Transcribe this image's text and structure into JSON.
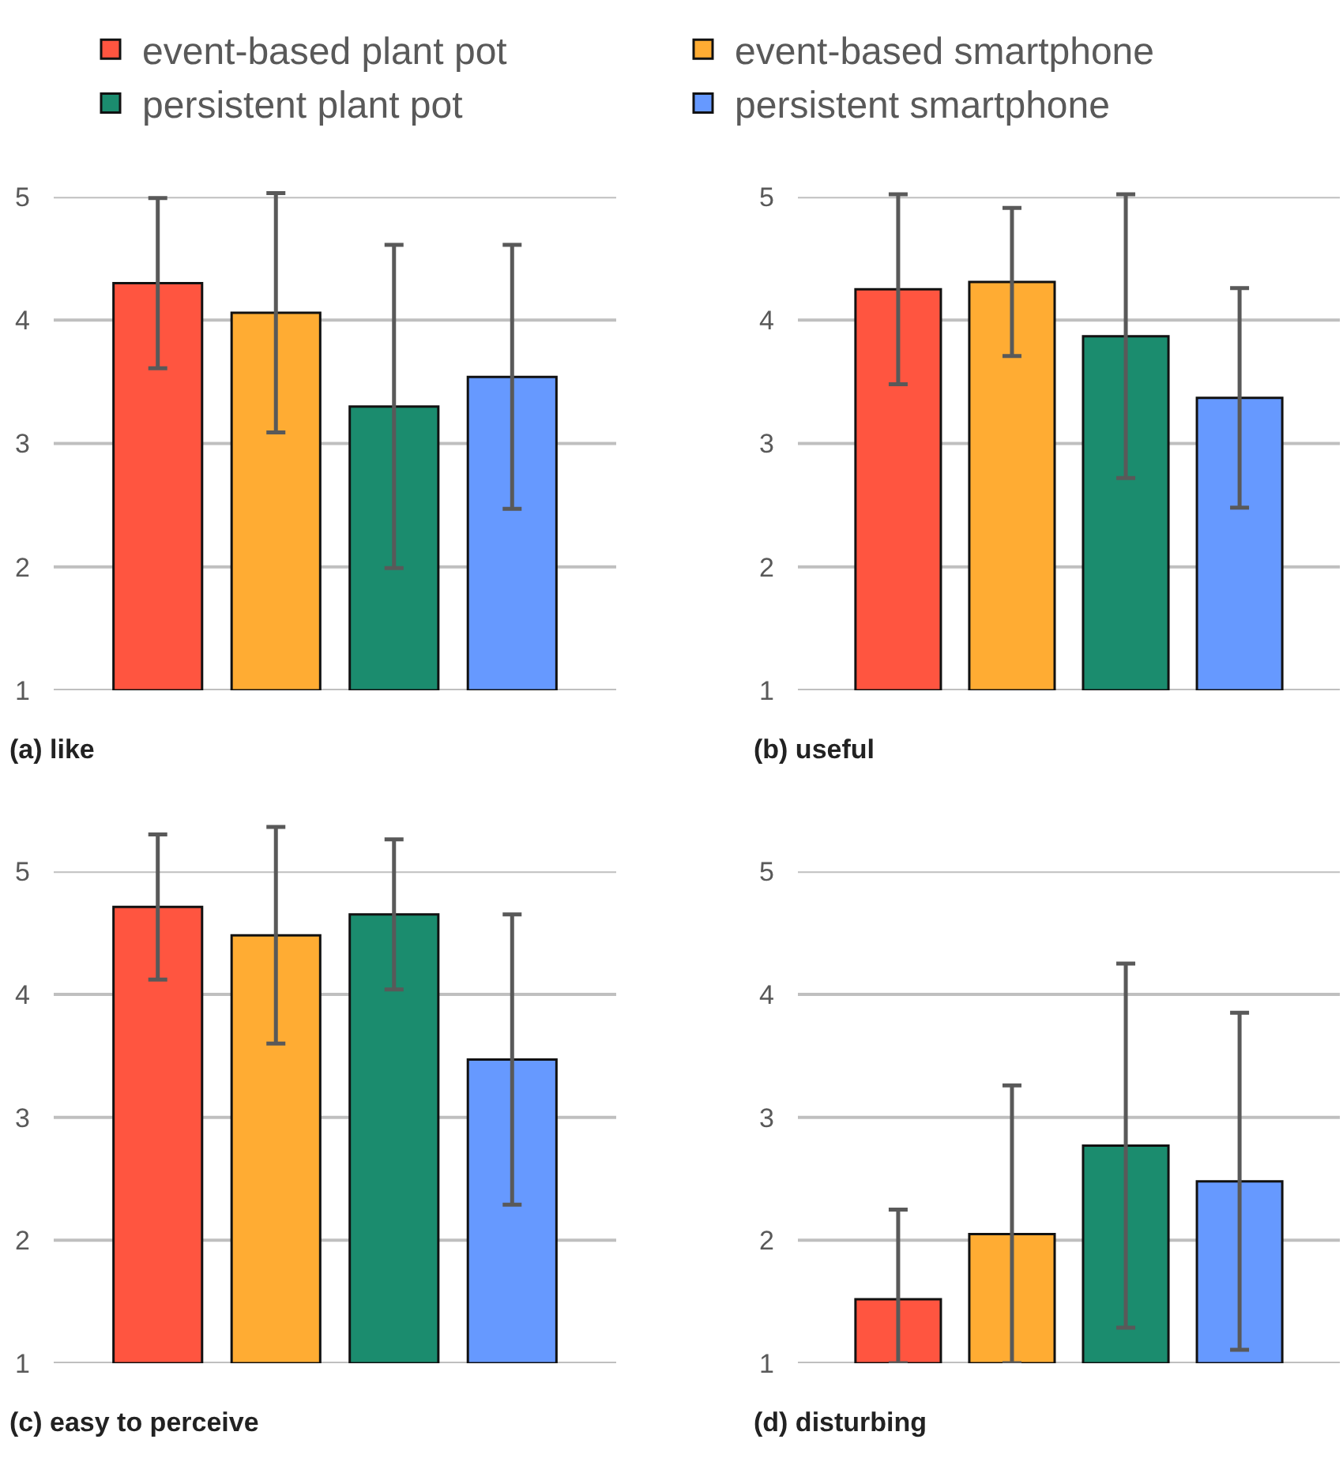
{
  "chart_data": [
    {
      "type": "bar",
      "title": "(a) like",
      "categories": [
        null
      ],
      "ylim": [
        1,
        5
      ],
      "yticks": [
        1,
        2,
        3,
        4,
        5
      ],
      "grid": "y",
      "legend": "top",
      "series": [
        {
          "name": "event-based plant pot",
          "color": "#ff5540",
          "values": [
            4.3
          ],
          "errors": [
            0.69
          ]
        },
        {
          "name": "event-based smartphone",
          "color": "#ffac33",
          "values": [
            4.06
          ],
          "errors": [
            0.97
          ]
        },
        {
          "name": "persistent plant pot",
          "color": "#1b8c6e",
          "values": [
            3.3
          ],
          "errors": [
            1.31
          ]
        },
        {
          "name": "persistent smartphone",
          "color": "#6699ff",
          "values": [
            3.54
          ],
          "errors": [
            1.07
          ]
        }
      ]
    },
    {
      "type": "bar",
      "title": "(b) useful",
      "categories": [
        null
      ],
      "ylim": [
        1,
        5
      ],
      "yticks": [
        1,
        2,
        3,
        4,
        5
      ],
      "grid": "y",
      "series": [
        {
          "color": "#ff5540",
          "values": [
            4.25
          ],
          "errors": [
            0.77
          ]
        },
        {
          "color": "#ffac33",
          "values": [
            4.31
          ],
          "errors": [
            0.6
          ]
        },
        {
          "color": "#1b8c6e",
          "values": [
            3.87
          ],
          "errors": [
            1.15
          ]
        },
        {
          "color": "#6699ff",
          "values": [
            3.37
          ],
          "errors": [
            0.89
          ]
        }
      ]
    },
    {
      "type": "bar",
      "title": "(c) easy to perceive",
      "categories": [
        null
      ],
      "ylim": [
        1,
        5
      ],
      "yticks": [
        1,
        2,
        3,
        4,
        5
      ],
      "grid": "y",
      "series": [
        {
          "color": "#ff5540",
          "values": [
            4.71
          ],
          "errors": [
            0.59
          ]
        },
        {
          "color": "#ffac33",
          "values": [
            4.48
          ],
          "errors": [
            0.88
          ]
        },
        {
          "color": "#1b8c6e",
          "values": [
            4.65
          ],
          "errors": [
            0.61
          ]
        },
        {
          "color": "#6699ff",
          "values": [
            3.47
          ],
          "errors": [
            1.18
          ]
        }
      ]
    },
    {
      "type": "bar",
      "title": "(d) disturbing",
      "categories": [
        null
      ],
      "ylim": [
        1,
        5
      ],
      "yticks": [
        1,
        2,
        3,
        4,
        5
      ],
      "grid": "y",
      "series": [
        {
          "color": "#ff5540",
          "values": [
            1.52
          ],
          "errors": [
            [
              1,
              2.25
            ]
          ]
        },
        {
          "color": "#ffac33",
          "values": [
            2.05
          ],
          "errors": [
            [
              1,
              3.26
            ]
          ]
        },
        {
          "color": "#1b8c6e",
          "values": [
            2.77
          ],
          "errors": [
            1.48
          ]
        },
        {
          "color": "#6699ff",
          "values": [
            2.48
          ],
          "errors": [
            1.37
          ]
        }
      ]
    }
  ]
}
